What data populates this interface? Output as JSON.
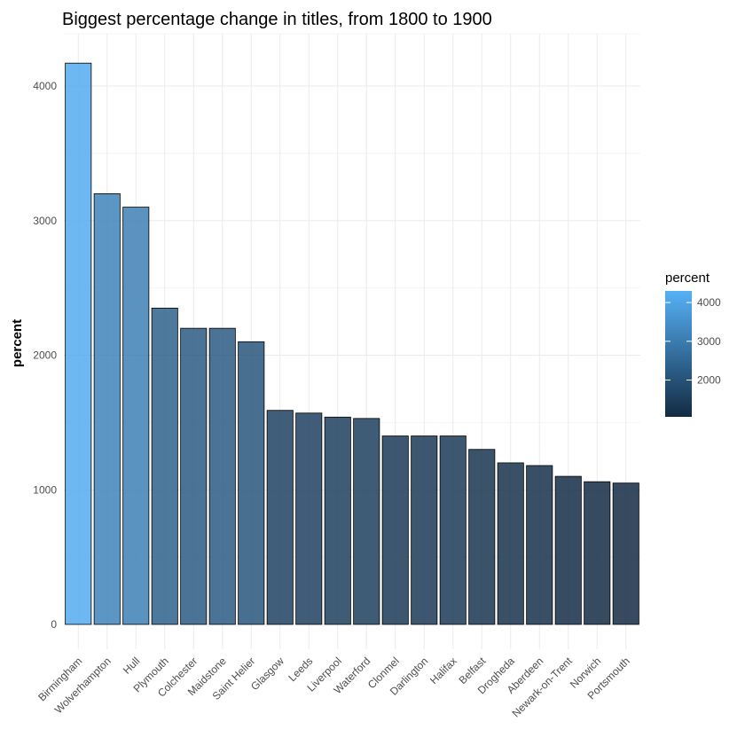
{
  "chart_data": {
    "type": "bar",
    "title": "Biggest percentage change in titles, from 1800 to 1900",
    "xlabel": "",
    "ylabel": "percent",
    "categories": [
      "Birmingham",
      "Wolverhampton",
      "Hull",
      "Plymouth",
      "Colchester",
      "Maidstone",
      "Saint Helier",
      "Glasgow",
      "Leeds",
      "Liverpool",
      "Waterford",
      "Clonmel",
      "Darlington",
      "Halifax",
      "Belfast",
      "Drogheda",
      "Aberdeen",
      "Newark-on-Trent",
      "Norwich",
      "Portsmouth"
    ],
    "values": [
      4170,
      3200,
      3100,
      2350,
      2200,
      2200,
      2100,
      1590,
      1570,
      1540,
      1530,
      1400,
      1400,
      1400,
      1300,
      1200,
      1180,
      1100,
      1060,
      1050
    ],
    "ylim": [
      0,
      4300
    ],
    "yticks": [
      0,
      1000,
      2000,
      3000,
      4000
    ],
    "grid": true,
    "legend": {
      "title": "percent",
      "position": "right",
      "ticks": [
        2000,
        3000,
        4000
      ],
      "range": [
        1050,
        4300
      ],
      "color_low": "#132b43",
      "color_high": "#56b1f7"
    }
  }
}
